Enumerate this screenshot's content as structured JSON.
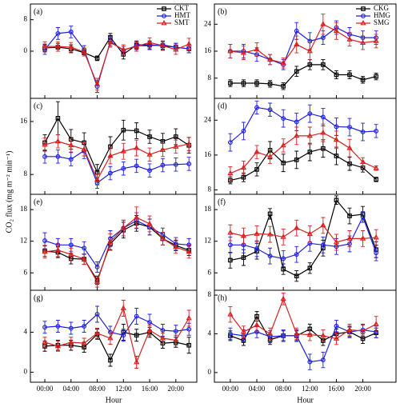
{
  "y_axis_label": "CO₂ flux (mg m⁻² min⁻¹)",
  "chart_data": [
    {
      "type": "line",
      "panel_label": "(a)",
      "x": [
        0,
        2,
        4,
        6,
        8,
        10,
        12,
        14,
        16,
        18,
        20,
        22
      ],
      "xlim": [
        -2.2,
        23.2
      ],
      "ylim": [
        -12,
        12
      ],
      "yticks": [
        0,
        8
      ],
      "legend": "upper right",
      "series": [
        {
          "name": "CKT",
          "color": "#000000",
          "marker": "square",
          "values": [
            0.8,
            1.0,
            0.6,
            -0.4,
            -1.8,
            3.5,
            -0.8,
            1.6,
            1.6,
            1.4,
            1.0,
            0.6
          ],
          "errors": [
            1,
            1,
            1,
            0.8,
            0.6,
            1,
            1.2,
            1,
            1,
            1,
            1,
            1
          ]
        },
        {
          "name": "HMT",
          "color": "#1f1fe0",
          "marker": "circle",
          "values": [
            0.4,
            4.5,
            4.9,
            0.4,
            -9.0,
            2.5,
            0.2,
            1.4,
            1.4,
            1.6,
            1.0,
            0.6
          ],
          "errors": [
            1.2,
            1.5,
            1.5,
            1,
            1.5,
            1.2,
            1,
            1,
            1,
            1,
            1,
            1
          ]
        },
        {
          "name": "SMT",
          "color": "#d62020",
          "marker": "triangle",
          "values": [
            1.2,
            1.2,
            1.0,
            -0.2,
            -8.4,
            2.2,
            0.4,
            1.2,
            2.2,
            1.4,
            0.4,
            1.8
          ],
          "errors": [
            1.2,
            1.2,
            1.2,
            1,
            1.5,
            1.2,
            1.2,
            1.2,
            1.2,
            1.2,
            1.2,
            1.5
          ]
        }
      ]
    },
    {
      "type": "line",
      "panel_label": "(b)",
      "x": [
        0,
        2,
        4,
        6,
        8,
        10,
        12,
        14,
        16,
        18,
        20,
        22
      ],
      "xlim": [
        -2.4,
        25
      ],
      "ylim": [
        2,
        30
      ],
      "yticks": [
        8,
        16,
        24
      ],
      "legend": "upper right",
      "series": [
        {
          "name": "CKG",
          "color": "#000000",
          "marker": "square",
          "values": [
            6.5,
            6.5,
            6.5,
            6.3,
            5.6,
            10,
            12,
            12,
            9,
            9,
            7.5,
            8.5
          ],
          "errors": [
            1,
            1,
            1,
            1,
            1,
            1.5,
            1.5,
            1.5,
            1.2,
            1.2,
            1,
            1
          ]
        },
        {
          "name": "HMG",
          "color": "#1f1fe0",
          "marker": "circle",
          "values": [
            16,
            16,
            15,
            13.5,
            12,
            22,
            19,
            20,
            23,
            21,
            20,
            20
          ],
          "errors": [
            2,
            2,
            2,
            1.5,
            1.5,
            2.5,
            2.5,
            2,
            2,
            2,
            2,
            2
          ]
        },
        {
          "name": "SMG",
          "color": "#d62020",
          "marker": "triangle",
          "values": [
            16,
            15.5,
            16.5,
            13.5,
            12.5,
            18,
            16,
            24,
            22,
            19.5,
            18.5,
            19
          ],
          "errors": [
            2,
            2,
            2,
            1.5,
            1.5,
            2.5,
            2.5,
            3,
            2.5,
            2,
            2,
            2
          ]
        }
      ]
    },
    {
      "type": "line",
      "panel_label": "(c)",
      "x": [
        0,
        2,
        4,
        6,
        8,
        10,
        12,
        14,
        16,
        18,
        20,
        22
      ],
      "xlim": [
        -2.2,
        23.2
      ],
      "ylim": [
        5,
        19.5
      ],
      "yticks": [
        8,
        16
      ],
      "series": [
        {
          "color": "#000000",
          "marker": "square",
          "values": [
            12.8,
            16.5,
            13.3,
            12.8,
            8.3,
            12.2,
            14.7,
            14.6,
            13.7,
            13,
            13.7,
            12.4
          ],
          "errors": [
            1.2,
            2.5,
            1.5,
            1.5,
            1.2,
            1.5,
            1.5,
            1.2,
            1,
            1.2,
            1.2,
            1.2
          ]
        },
        {
          "color": "#1f1fe0",
          "marker": "circle",
          "values": [
            10.7,
            10.7,
            10.3,
            11.6,
            6.7,
            8.2,
            8.9,
            9.3,
            8.6,
            9.4,
            9.5,
            9.6
          ],
          "errors": [
            1,
            1,
            1,
            1.2,
            0.8,
            1,
            1,
            1,
            1,
            1,
            1,
            1
          ]
        },
        {
          "color": "#d62020",
          "marker": "triangle",
          "values": [
            12.5,
            13,
            12.4,
            11.8,
            7.2,
            10.8,
            11.5,
            12,
            11,
            11.7,
            12.2,
            12.6
          ],
          "errors": [
            1,
            1,
            1,
            1,
            0.8,
            1.2,
            1.2,
            1.2,
            1,
            1,
            1,
            1
          ]
        }
      ]
    },
    {
      "type": "line",
      "panel_label": "(d)",
      "x": [
        0,
        2,
        4,
        6,
        8,
        10,
        12,
        14,
        16,
        18,
        20,
        22
      ],
      "xlim": [
        -2.4,
        25
      ],
      "ylim": [
        7,
        29
      ],
      "yticks": [
        8,
        16,
        24
      ],
      "series": [
        {
          "color": "#000000",
          "marker": "square",
          "values": [
            10.2,
            10.9,
            12.7,
            17.1,
            14.2,
            14.9,
            16.7,
            17.5,
            15.8,
            14,
            13.1,
            10.4
          ],
          "errors": [
            0.8,
            1,
            1.5,
            2,
            2,
            2,
            2,
            2,
            2,
            1.5,
            1,
            0.5
          ]
        },
        {
          "color": "#1f1fe0",
          "marker": "circle",
          "values": [
            18.9,
            21.5,
            26.9,
            26.4,
            24.4,
            23.6,
            25.5,
            24.7,
            22.5,
            22.4,
            21.3,
            21.5
          ],
          "errors": [
            2,
            2,
            1.5,
            1.5,
            2,
            2,
            2,
            2,
            2,
            2,
            2,
            1.5
          ]
        },
        {
          "color": "#d62020",
          "marker": "triangle",
          "values": [
            11.8,
            13.1,
            16.7,
            15.6,
            18.2,
            20.4,
            20.4,
            21.1,
            19.5,
            17.6,
            14.4,
            13
          ],
          "errors": [
            1.5,
            1.5,
            1.5,
            1.5,
            1.5,
            2,
            2,
            2,
            2,
            2,
            1,
            0.5
          ]
        }
      ]
    },
    {
      "type": "line",
      "panel_label": "(e)",
      "x": [
        0,
        2,
        4,
        6,
        8,
        10,
        12,
        14,
        16,
        18,
        20,
        22
      ],
      "xlim": [
        -2.2,
        23.2
      ],
      "ylim": [
        2.7,
        20.9
      ],
      "yticks": [
        6,
        12,
        18
      ],
      "series": [
        {
          "color": "#000000",
          "marker": "square",
          "values": [
            10.1,
            9.9,
            8.7,
            8.6,
            4.6,
            11.5,
            14.1,
            15.4,
            14.7,
            12.5,
            11.2,
            10.3
          ],
          "errors": [
            1,
            1,
            1,
            1,
            0.8,
            1.2,
            1.5,
            1.5,
            1.5,
            1.2,
            1,
            1
          ]
        },
        {
          "color": "#1f1fe0",
          "marker": "circle",
          "values": [
            12.1,
            11.3,
            11.3,
            10.7,
            7.1,
            12.5,
            14.5,
            15.9,
            14.7,
            13.3,
            11.5,
            11.3
          ],
          "errors": [
            1.5,
            1.2,
            1.2,
            1.2,
            1,
            1.5,
            1.5,
            1.5,
            1.5,
            1.2,
            1.2,
            1.2
          ]
        },
        {
          "color": "#d62020",
          "marker": "triangle",
          "values": [
            10,
            10.3,
            9.5,
            8.6,
            4.3,
            11.9,
            14.5,
            16.5,
            15.3,
            12.5,
            10.9,
            10
          ],
          "errors": [
            1.2,
            1.2,
            1.2,
            1,
            1,
            1.5,
            1.5,
            2,
            1.5,
            1.2,
            1.2,
            1.2
          ]
        }
      ]
    },
    {
      "type": "line",
      "panel_label": "(f)",
      "x": [
        0,
        2,
        4,
        6,
        8,
        10,
        12,
        14,
        16,
        18,
        20,
        22
      ],
      "xlim": [
        -2.4,
        25
      ],
      "ylim": [
        2.7,
        20.9
      ],
      "yticks": [
        6,
        12,
        18
      ],
      "series": [
        {
          "color": "#000000",
          "marker": "square",
          "values": [
            8.4,
            8.9,
            10.1,
            17.2,
            6.7,
            5.4,
            6.9,
            10.7,
            19.8,
            16.8,
            17.1,
            10.4
          ],
          "errors": [
            1.5,
            1.5,
            1.5,
            1,
            1,
            1,
            1,
            1.5,
            0.8,
            1.5,
            1.5,
            1.5
          ]
        },
        {
          "color": "#1f1fe0",
          "marker": "circle",
          "values": [
            11.3,
            11.3,
            10.6,
            9.2,
            8.7,
            9.5,
            11.6,
            11.3,
            11,
            11.5,
            16.6,
            9.8
          ],
          "errors": [
            1.5,
            1.5,
            1.5,
            1.5,
            1.5,
            1.5,
            1.5,
            1.5,
            1.5,
            1.5,
            1,
            1.5
          ]
        },
        {
          "color": "#d62020",
          "marker": "triangle",
          "values": [
            13.6,
            13,
            13.4,
            13.3,
            12.8,
            14.5,
            13.4,
            15,
            11.8,
            12.5,
            12.5,
            12.7
          ],
          "errors": [
            1.5,
            1.5,
            1.5,
            1.5,
            1.5,
            1.5,
            1.5,
            1.5,
            1.5,
            1.5,
            1.5,
            1.5
          ]
        }
      ]
    },
    {
      "type": "line",
      "panel_label": "(g)",
      "x": [
        0,
        2,
        4,
        6,
        8,
        10,
        12,
        14,
        16,
        18,
        20,
        22
      ],
      "xlim": [
        -2.2,
        23.2
      ],
      "ylim": [
        -1,
        8.2
      ],
      "yticks": [
        0,
        4
      ],
      "xlabel": "Hour",
      "xticks": [
        {
          "value": 0,
          "label": "00:00"
        },
        {
          "value": 4,
          "label": "04:00"
        },
        {
          "value": 8,
          "label": "08:00"
        },
        {
          "value": 12,
          "label": "12:00"
        },
        {
          "value": 16,
          "label": "16:00"
        },
        {
          "value": 20,
          "label": "20:00"
        }
      ],
      "series": [
        {
          "color": "#000000",
          "marker": "square",
          "values": [
            2.6,
            2.7,
            2.7,
            2.5,
            3.8,
            1.2,
            4,
            3.7,
            4,
            2.9,
            3,
            2.7
          ],
          "errors": [
            0.5,
            0.5,
            0.5,
            0.5,
            0.5,
            0.6,
            0.8,
            0.6,
            0.5,
            0.5,
            0.5,
            0.8
          ]
        },
        {
          "color": "#1f1fe0",
          "marker": "circle",
          "values": [
            4.5,
            4.6,
            4.4,
            4.6,
            5.8,
            4,
            3.7,
            5.6,
            5,
            4.2,
            4.1,
            4.3
          ],
          "errors": [
            0.6,
            0.6,
            0.6,
            0.6,
            0.8,
            0.6,
            0.6,
            0.8,
            0.8,
            0.6,
            0.6,
            0.6
          ]
        },
        {
          "color": "#d62020",
          "marker": "triangle",
          "values": [
            3,
            2.6,
            3,
            2.9,
            3.9,
            3.4,
            6.4,
            1,
            4.2,
            3.4,
            3.2,
            5.4
          ],
          "errors": [
            0.5,
            0.5,
            0.5,
            0.5,
            0.5,
            0.6,
            0.8,
            0.6,
            0.5,
            0.5,
            0.5,
            0.8
          ]
        }
      ]
    },
    {
      "type": "line",
      "panel_label": "(h)",
      "x": [
        0,
        2,
        4,
        6,
        8,
        10,
        12,
        14,
        16,
        18,
        20,
        22
      ],
      "xlim": [
        -2.4,
        25
      ],
      "ylim": [
        -1,
        8.5
      ],
      "yticks": [
        0,
        4,
        8
      ],
      "xlabel": "Hour",
      "xticks": [
        {
          "value": 0,
          "label": "00:00"
        },
        {
          "value": 4,
          "label": "04:00"
        },
        {
          "value": 8,
          "label": "08:00"
        },
        {
          "value": 12,
          "label": "12:00"
        },
        {
          "value": 16,
          "label": "16:00"
        },
        {
          "value": 20,
          "label": "20:00"
        }
      ],
      "series": [
        {
          "color": "#000000",
          "marker": "square",
          "values": [
            3.8,
            3.3,
            5.8,
            3.4,
            3.8,
            3.8,
            4.5,
            3.3,
            4,
            4.2,
            3.5,
            4.1
          ],
          "errors": [
            0.5,
            0.5,
            0.5,
            0.5,
            0.5,
            0.5,
            0.5,
            0.5,
            0.5,
            0.5,
            0.5,
            0.5
          ]
        },
        {
          "color": "#1f1fe0",
          "marker": "circle",
          "values": [
            4,
            3.8,
            4.2,
            3.7,
            3.8,
            3.8,
            1.1,
            1.3,
            4.8,
            4.2,
            4.4,
            4.2
          ],
          "errors": [
            0.6,
            0.6,
            0.6,
            0.6,
            0.6,
            0.6,
            0.8,
            0.8,
            0.6,
            0.6,
            0.6,
            0.6
          ]
        },
        {
          "color": "#d62020",
          "marker": "triangle",
          "values": [
            6,
            4.2,
            4.9,
            4,
            7.6,
            4,
            3.9,
            3.8,
            3.5,
            4.4,
            4.3,
            5
          ],
          "errors": [
            0.8,
            0.6,
            0.6,
            0.6,
            0.6,
            0.6,
            0.6,
            0.6,
            0.6,
            0.6,
            0.6,
            0.8
          ]
        }
      ]
    }
  ]
}
